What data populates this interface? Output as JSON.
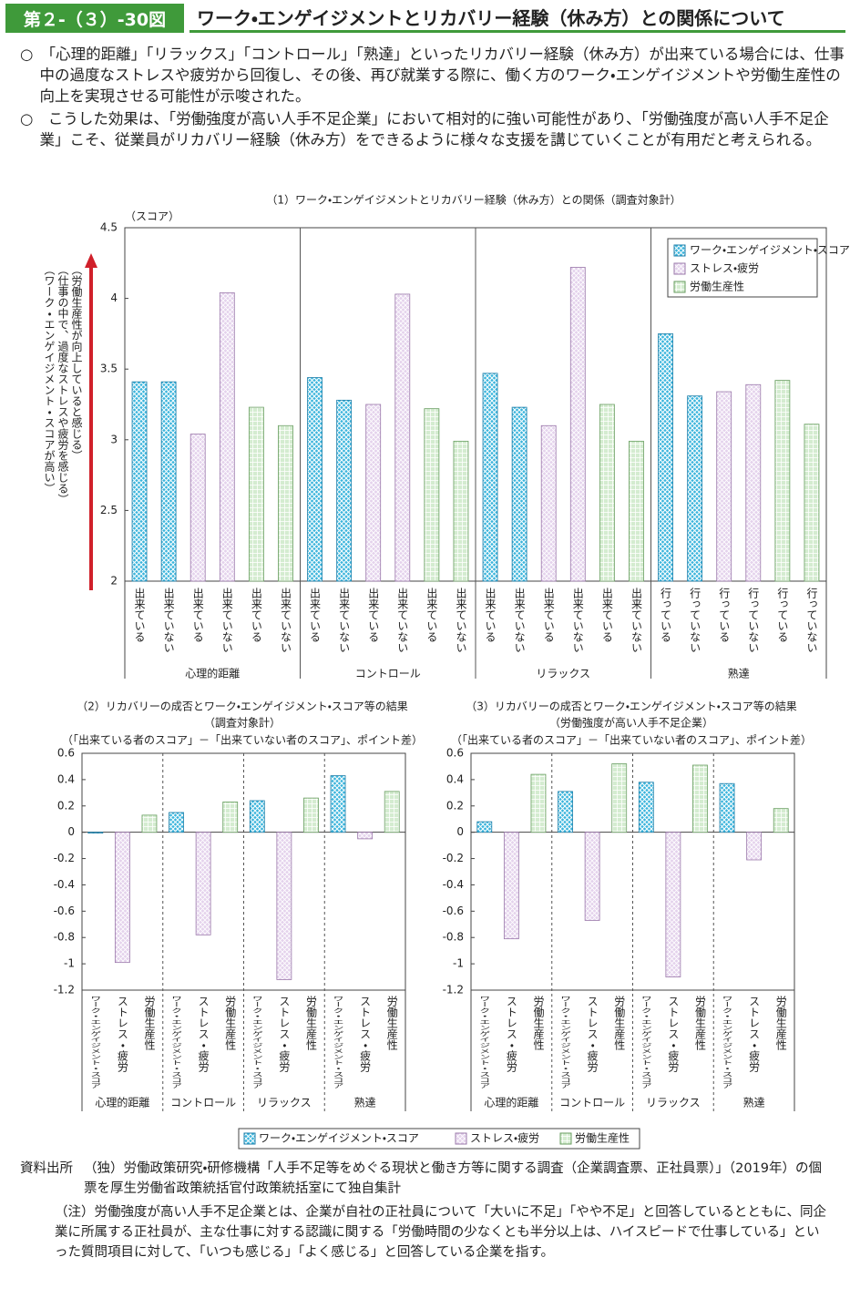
{
  "header": {
    "label": "第２-（３）-30図",
    "title": "ワーク・エンゲイジメントとリカバリー経験（休み方）との関係について"
  },
  "bullets": [
    "○　「心理的距離」「リラックス」「コントロール」「熟達」といったリカバリー経験（休み方）が出来ている場合には、仕事中の過度なストレスや疲労から回復し、その後、再び就業する際に、働く方のワーク・エンゲイジメントや労働生産性の向上を実現させる可能性が示唆された。",
    "○　こうした効果は、「労働強度が高い人手不足企業」において相対的に強い可能性があり、「労働強度が高い人手不足企業」こそ、従業員がリカバリー経験（休み方）をできるように様々な支援を講じていくことが有用だと考えられる。"
  ],
  "chart_data": [
    {
      "type": "bar",
      "title": "（1）ワーク・エンゲイジメントとリカバリー経験（休み方）との関係（調査対象計）",
      "y_label": "（スコア）",
      "side_notes": [
        "（労働生産性が向上していると感じる）",
        "（仕事の中で、過度なストレスや疲労を感じる）",
        "（ワーク・エンゲイジメント・スコアが高い）"
      ],
      "groups": [
        "心理的距離",
        "コントロール",
        "リラックス",
        "熟達"
      ],
      "categories": [
        "出来ている",
        "出来ていない",
        "出来ている",
        "出来ていない",
        "出来ている",
        "出来ていない",
        "出来ている",
        "出来ていない",
        "出来ている",
        "出来ていない",
        "出来ている",
        "出来ていない",
        "出来ている",
        "出来ていない",
        "出来ている",
        "出来ていない",
        "出来ている",
        "出来ていない",
        "行っている",
        "行っていない",
        "行っている",
        "行っていない",
        "行っている",
        "行っていない"
      ],
      "series": [
        {
          "name": "ワーク・エンゲイジメント・スコア",
          "color": "#3ab4dc",
          "values": [
            3.41,
            3.41,
            null,
            null,
            null,
            null,
            3.44,
            3.28,
            null,
            null,
            null,
            null,
            3.47,
            3.23,
            null,
            null,
            null,
            null,
            3.75,
            3.31,
            null,
            null,
            null,
            null
          ]
        },
        {
          "name": "ストレス・疲労",
          "color": "#e4d2ec",
          "values": [
            null,
            null,
            3.04,
            4.04,
            null,
            null,
            null,
            null,
            3.25,
            4.03,
            null,
            null,
            null,
            null,
            3.1,
            4.22,
            null,
            null,
            null,
            null,
            3.34,
            3.39,
            null,
            null
          ]
        },
        {
          "name": "労働生産性",
          "color": "#d4ecd0",
          "values": [
            null,
            null,
            null,
            null,
            3.23,
            3.1,
            null,
            null,
            null,
            null,
            3.22,
            2.99,
            null,
            null,
            null,
            null,
            3.25,
            2.99,
            null,
            null,
            null,
            null,
            3.42,
            3.11
          ]
        }
      ],
      "ylim": [
        2,
        4.5
      ],
      "yticks": [
        2,
        2.5,
        3,
        3.5,
        4,
        4.5
      ],
      "legend": "upper right"
    },
    {
      "type": "bar",
      "title": "（2）リカバリーの成否とワーク・エンゲイジメント・スコア等の結果",
      "subtitle": "（調査対象計）",
      "note": "（「出来ている者のスコア」－「出来ていない者のスコア」、ポイント差）",
      "groups": [
        "心理的距離",
        "コントロール",
        "リラックス",
        "熟達"
      ],
      "categories": [
        "ワーク・エンゲイジメント・スコア",
        "ストレス・疲労",
        "労働生産性",
        "ワーク・エンゲイジメント・スコア",
        "ストレス・疲労",
        "労働生産性",
        "ワーク・エンゲイジメント・スコア",
        "ストレス・疲労",
        "労働生産性",
        "ワーク・エンゲイジメント・スコア",
        "ストレス・疲労",
        "労働生産性"
      ],
      "series": [
        {
          "name": "ワーク・エンゲイジメント・スコア",
          "color": "#3ab4dc",
          "values": [
            0.0,
            null,
            null,
            0.15,
            null,
            null,
            0.24,
            null,
            null,
            0.43,
            null,
            null
          ]
        },
        {
          "name": "ストレス・疲労",
          "color": "#e4d2ec",
          "values": [
            null,
            -0.99,
            null,
            null,
            -0.78,
            null,
            null,
            -1.12,
            null,
            null,
            -0.05,
            null
          ]
        },
        {
          "name": "労働生産性",
          "color": "#d4ecd0",
          "values": [
            null,
            null,
            0.13,
            null,
            null,
            0.23,
            null,
            null,
            0.26,
            null,
            null,
            0.31
          ]
        }
      ],
      "ylim": [
        -1.2,
        0.6
      ],
      "yticks": [
        -1.2,
        -1,
        -0.8,
        -0.6,
        -0.4,
        -0.2,
        0,
        0.2,
        0.4,
        0.6
      ],
      "legend": "bottom"
    },
    {
      "type": "bar",
      "title": "（3）リカバリーの成否とワーク・エンゲイジメント・スコア等の結果",
      "subtitle": "（労働強度が高い人手不足企業）",
      "note": "（「出来ている者のスコア」－「出来ていない者のスコア」、ポイント差）",
      "groups": [
        "心理的距離",
        "コントロール",
        "リラックス",
        "熟達"
      ],
      "categories": [
        "ワーク・エンゲイジメント・スコア",
        "ストレス・疲労",
        "労働生産性",
        "ワーク・エンゲイジメント・スコア",
        "ストレス・疲労",
        "労働生産性",
        "ワーク・エンゲイジメント・スコア",
        "ストレス・疲労",
        "労働生産性",
        "ワーク・エンゲイジメント・スコア",
        "ストレス・疲労",
        "労働生産性"
      ],
      "series": [
        {
          "name": "ワーク・エンゲイジメント・スコア",
          "color": "#3ab4dc",
          "values": [
            0.08,
            null,
            null,
            0.31,
            null,
            null,
            0.38,
            null,
            null,
            0.37,
            null,
            null
          ]
        },
        {
          "name": "ストレス・疲労",
          "color": "#e4d2ec",
          "values": [
            null,
            -0.81,
            null,
            null,
            -0.67,
            null,
            null,
            -1.1,
            null,
            null,
            -0.21,
            null
          ]
        },
        {
          "name": "労働生産性",
          "color": "#d4ecd0",
          "values": [
            null,
            null,
            0.44,
            null,
            null,
            0.52,
            null,
            null,
            0.51,
            null,
            null,
            0.18
          ]
        }
      ],
      "ylim": [
        -1.2,
        0.6
      ],
      "yticks": [
        -1.2,
        -1,
        -0.8,
        -0.6,
        -0.4,
        -0.2,
        0,
        0.2,
        0.4,
        0.6
      ],
      "legend": "bottom"
    }
  ],
  "source": {
    "label": "資料出所",
    "text": "（独）労働政策研究・研修機構「人手不足等をめぐる現状と働き方等に関する調査（企業調査票、正社員票）」（2019年）の個票を厚生労働省政策統括官付政策統括室にて独自集計",
    "note_label": "（注）",
    "note_text": "労働強度が高い人手不足企業とは、企業が自社の正社員について「大いに不足」「やや不足」と回答しているとともに、同企業に所属する正社員が、主な仕事に対する認識に関する「労働時間の少なくとも半分以上は、ハイスピードで仕事している」といった質問項目に対して、「いつも感じる」「よく感じる」と回答している企業を指す。"
  }
}
